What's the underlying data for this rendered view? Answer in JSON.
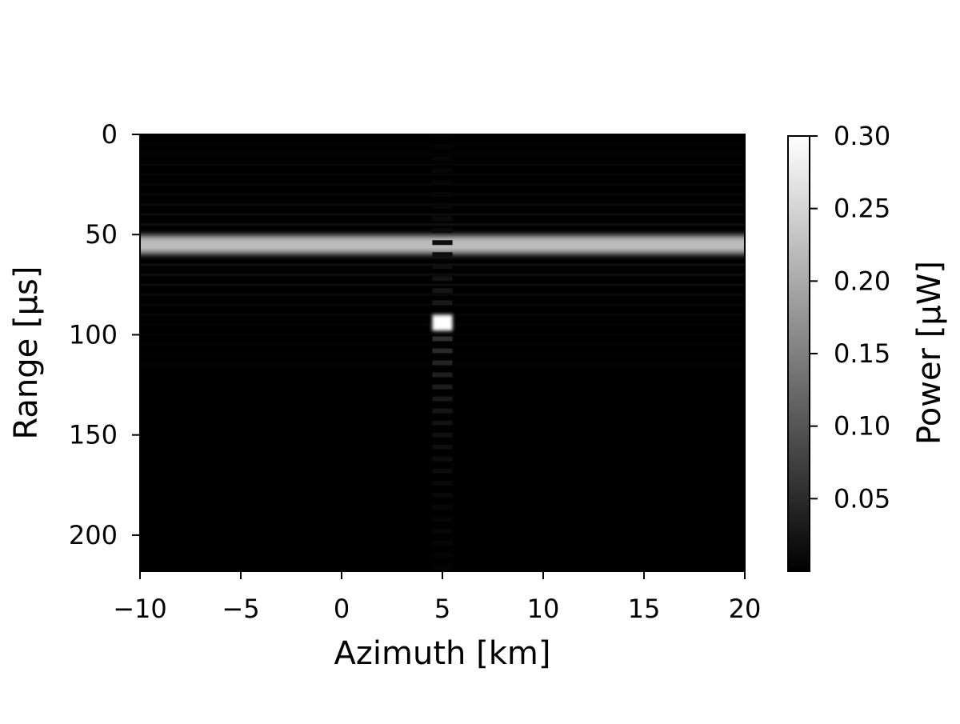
{
  "chart_data": {
    "type": "heatmap",
    "title": "",
    "xlabel": "Azimuth [km]",
    "ylabel": "Range [µs]",
    "xlim": [
      -10,
      20
    ],
    "ylim": [
      218,
      0
    ],
    "x_ticks": [
      -10,
      -5,
      0,
      5,
      10,
      15,
      20
    ],
    "x_tick_labels": [
      "−10",
      "−5",
      "0",
      "5",
      "10",
      "15",
      "20"
    ],
    "y_ticks": [
      0,
      50,
      100,
      150,
      200
    ],
    "y_tick_labels": [
      "0",
      "50",
      "100",
      "150",
      "200"
    ],
    "colormap": "gray",
    "colorbar": {
      "label": "Power [µW]",
      "range": [
        0,
        0.3
      ],
      "ticks": [
        0.05,
        0.1,
        0.15,
        0.2,
        0.25,
        0.3
      ],
      "tick_labels": [
        "0.05",
        "0.10",
        "0.15",
        "0.20",
        "0.25",
        "0.30"
      ]
    },
    "features": [
      {
        "kind": "horizontal-band",
        "range_center": 55,
        "range_width": 9,
        "azimuth_span": [
          -10,
          20
        ],
        "peak_power": 0.22,
        "sidelobe_spacing": 5,
        "sidelobe_extent": [
          0,
          125
        ]
      },
      {
        "kind": "point-target",
        "azimuth": 5,
        "range": 94,
        "peak_power": 0.3,
        "azimuth_width": 1.0,
        "range_width": 8
      },
      {
        "kind": "vertical-sidelobes",
        "azimuth": 5,
        "range_span": [
          0,
          218
        ],
        "spacing": 6
      }
    ]
  }
}
